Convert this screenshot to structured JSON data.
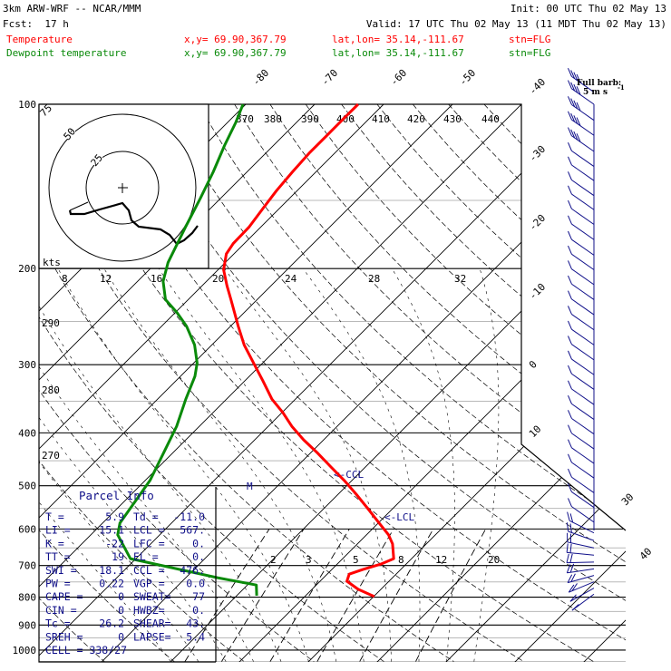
{
  "header": {
    "model": "3km ARW-WRF -- NCAR/MMM",
    "init": "Init: 00 UTC Thu 02 May 13",
    "fcst": "Fcst:  17 h",
    "valid": "Valid: 17 UTC Thu 02 May 13 (11 MDT Thu 02 May 13)",
    "temp_row": {
      "name": "Temperature",
      "xy": "x,y= 69.90,367.79",
      "latlon": "lat,lon= 35.14,-111.67",
      "stn": "stn=FLG"
    },
    "dew_row": {
      "name": "Dewpoint temperature",
      "xy": "x,y= 69.90,367.79",
      "latlon": "lat,lon= 35.14,-111.67",
      "stn": "stn=FLG"
    }
  },
  "colors": {
    "temperature": "#ff0000",
    "dewpoint": "#0a8a0a",
    "info": "#10108a",
    "grid": "#000000",
    "gray": "#b8b8b8"
  },
  "barb_legend": {
    "line1": "Full barb:",
    "line2": "5 m s",
    "sup": "-1"
  },
  "hodograph": {
    "unit": "kts",
    "rings": [
      "25",
      "50",
      "75"
    ]
  },
  "parcel_info": {
    "title": "Parcel Info",
    "rows": [
      {
        "l1": "T  =",
        "v1": "5.9",
        "l2": "Td = ",
        "v2": "-11.0"
      },
      {
        "l1": "LI =",
        "v1": "15.1",
        "l2": "LCL =",
        "v2": "567."
      },
      {
        "l1": "K  =",
        "v1": "-22",
        "l2": "LFC =",
        "v2": "0."
      },
      {
        "l1": "TT =",
        "v1": "19",
        "l2": "EL  =",
        "v2": "0."
      },
      {
        "l1": "SWI =",
        "v1": "18.1",
        "l2": "CCL =",
        "v2": "476."
      },
      {
        "l1": "PW =",
        "v1": "0.22",
        "l2": "VGP =",
        "v2": "0.0"
      },
      {
        "l1": "CAPE =",
        "v1": "0",
        "l2": "SWEAT=",
        "v2": "77"
      },
      {
        "l1": "CIN =",
        "v1": "0",
        "l2": "HWBZ=",
        "v2": "0."
      },
      {
        "l1": "Tc =",
        "v1": "26.2",
        "l2": "SHEAR=",
        "v2": "43."
      },
      {
        "l1": "SREH =",
        "v1": "0",
        "l2": "LAPSE=",
        "v2": "5.4"
      }
    ],
    "cell": "CELL = 338/27"
  },
  "annotations": {
    "ccl": "<-CCL",
    "lcl": "<-LCL",
    "m": "M"
  },
  "chart_data": {
    "type": "line",
    "title": "Skew-T log-P sounding",
    "pressure_levels": [
      100,
      200,
      300,
      400,
      500,
      600,
      700,
      800,
      900,
      1000
    ],
    "pressure_labels": [
      "100",
      "200",
      "300",
      "400",
      "500",
      "600",
      "700",
      "800",
      "900",
      "1000"
    ],
    "isotherm_labels": [
      {
        "t": -80,
        "text": "-80"
      },
      {
        "t": -70,
        "text": "-70"
      },
      {
        "t": -60,
        "text": "-60"
      },
      {
        "t": -50,
        "text": "-50"
      },
      {
        "t": -40,
        "text": "-40"
      },
      {
        "t": -30,
        "text": "-30"
      },
      {
        "t": -20,
        "text": "-20"
      },
      {
        "t": -10,
        "text": "-10"
      },
      {
        "t": 0,
        "text": "0"
      },
      {
        "t": 10,
        "text": "10"
      },
      {
        "t": 30,
        "text": "30"
      },
      {
        "t": 40,
        "text": "40"
      }
    ],
    "theta_e_labels": [
      "370",
      "380",
      "390",
      "400",
      "410",
      "420",
      "430",
      "440"
    ],
    "scale_labels_200mb": [
      "8",
      "12",
      "16",
      "20",
      "24",
      "28",
      "32"
    ],
    "theta_labels": [
      "290",
      "280",
      "270"
    ],
    "mixing_ratio_labels": [
      2,
      3,
      5,
      8,
      12,
      20
    ],
    "series": [
      {
        "name": "Temperature",
        "pressure": [
          798,
          774,
          748,
          726,
          712,
          696,
          680,
          639,
          615,
          585,
          549,
          518,
          489,
          462,
          436,
          412,
          389,
          367,
          347,
          321,
          298,
          276,
          255,
          228,
          215,
          201,
          188,
          180,
          168,
          155,
          144,
          133,
          123,
          114,
          106,
          100
        ],
        "temperature": [
          10.1,
          6.7,
          3.9,
          3.2,
          4.5,
          6.3,
          7.4,
          5.1,
          3.2,
          0.1,
          -3.8,
          -7.4,
          -11.1,
          -15,
          -18.9,
          -22.9,
          -26.6,
          -29.9,
          -33.4,
          -37.4,
          -41.3,
          -45.3,
          -48.9,
          -53.8,
          -56.4,
          -59.2,
          -61.1,
          -61.6,
          -61.7,
          -62.4,
          -63,
          -63.4,
          -63.7,
          -63.7,
          -63.7,
          -63.7
        ]
      },
      {
        "name": "Dewpoint temperature",
        "pressure": [
          795,
          760,
          737,
          680,
          615,
          585,
          489,
          436,
          389,
          347,
          315,
          298,
          276,
          255,
          241,
          228,
          211,
          195,
          181,
          168,
          149,
          133,
          119,
          108,
          100
        ],
        "temperature": [
          -7.1,
          -8.7,
          -15.4,
          -30.8,
          -36.1,
          -37.5,
          -39.3,
          -41.3,
          -43.3,
          -45.9,
          -47.9,
          -49.5,
          -52.5,
          -56.4,
          -59.7,
          -63.3,
          -66.3,
          -68.3,
          -69.6,
          -70.9,
          -72.9,
          -74.9,
          -77.1,
          -78.8,
          -80.4
        ]
      }
    ],
    "wind_barbs": {
      "pressure": [
        95,
        100,
        107,
        114,
        122,
        130,
        138,
        147,
        156,
        166,
        177,
        189,
        201,
        214,
        228,
        243,
        259,
        276,
        294,
        313,
        333,
        355,
        378,
        402,
        428,
        455,
        484,
        515,
        548,
        583,
        610,
        630,
        650,
        670,
        690,
        710,
        730,
        750,
        770,
        790
      ],
      "speed_ms": [
        20,
        20,
        22,
        22,
        20,
        5,
        7,
        5,
        5,
        5,
        5,
        7,
        7,
        7,
        7,
        5,
        5,
        5,
        7,
        7,
        7,
        5,
        5,
        5,
        5,
        5,
        5,
        5,
        7,
        7,
        10,
        10,
        12,
        10,
        10,
        10,
        10,
        10,
        5,
        5
      ]
    }
  }
}
